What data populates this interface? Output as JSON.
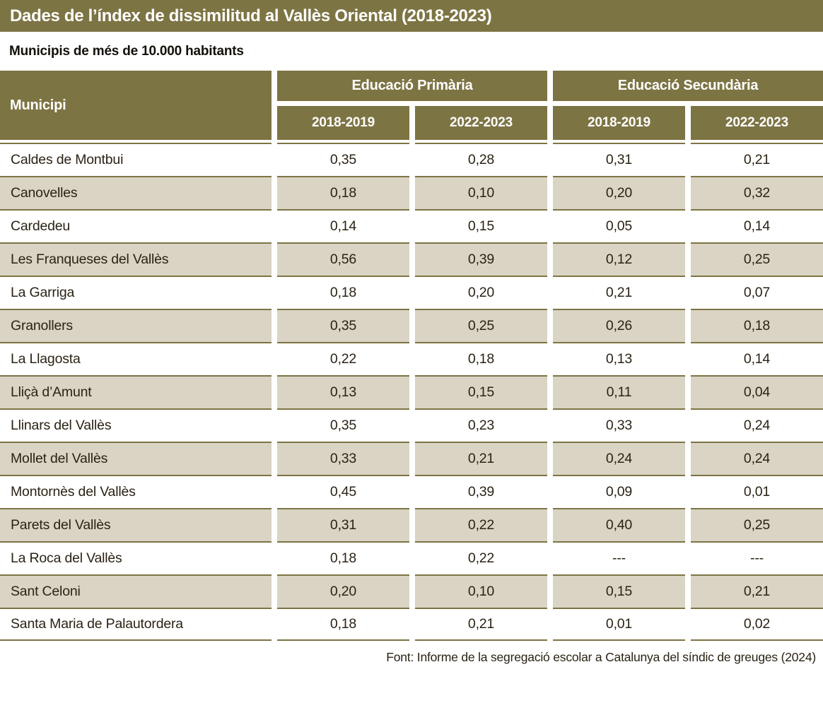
{
  "title": "Dades de l’índex de dissimilitud al Vallès Oriental (2018-2023)",
  "subtitle": "Municipis de més de 10.000 habitants",
  "table": {
    "municipality_header": "Municipi",
    "groups": [
      {
        "label": "Educació Primària",
        "columns": [
          "2018-2019",
          "2022-2023"
        ]
      },
      {
        "label": "Educació Secundària",
        "columns": [
          "2018-2019",
          "2022-2023"
        ]
      }
    ],
    "rows": [
      {
        "municipality": "Caldes de Montbui",
        "values": [
          "0,35",
          "0,28",
          "0,31",
          "0,21"
        ]
      },
      {
        "municipality": "Canovelles",
        "values": [
          "0,18",
          "0,10",
          "0,20",
          "0,32"
        ]
      },
      {
        "municipality": "Cardedeu",
        "values": [
          "0,14",
          "0,15",
          "0,05",
          "0,14"
        ]
      },
      {
        "municipality": "Les Franqueses del Vallès",
        "values": [
          "0,56",
          "0,39",
          "0,12",
          "0,25"
        ]
      },
      {
        "municipality": "La Garriga",
        "values": [
          "0,18",
          "0,20",
          "0,21",
          "0,07"
        ]
      },
      {
        "municipality": "Granollers",
        "values": [
          "0,35",
          "0,25",
          "0,26",
          "0,18"
        ]
      },
      {
        "municipality": "La Llagosta",
        "values": [
          "0,22",
          "0,18",
          "0,13",
          "0,14"
        ]
      },
      {
        "municipality": "Lliçà d’Amunt",
        "values": [
          "0,13",
          "0,15",
          "0,11",
          "0,04"
        ]
      },
      {
        "municipality": "Llinars del Vallès",
        "values": [
          "0,35",
          "0,23",
          "0,33",
          "0,24"
        ]
      },
      {
        "municipality": "Mollet del Vallès",
        "values": [
          "0,33",
          "0,21",
          "0,24",
          "0,24"
        ]
      },
      {
        "municipality": "Montornès del Vallès",
        "values": [
          "0,45",
          "0,39",
          "0,09",
          "0,01"
        ]
      },
      {
        "municipality": "Parets del Vallès",
        "values": [
          "0,31",
          "0,22",
          "0,40",
          "0,25"
        ]
      },
      {
        "municipality": "La Roca del Vallès",
        "values": [
          "0,18",
          "0,22",
          "---",
          "---"
        ]
      },
      {
        "municipality": "Sant Celoni",
        "values": [
          "0,20",
          "0,10",
          "0,15",
          "0,21"
        ]
      },
      {
        "municipality": "Santa Maria de Palautordera",
        "values": [
          "0,18",
          "0,21",
          "0,01",
          "0,02"
        ]
      }
    ]
  },
  "footer": "Font: Informe de la segregació escolar a Catalunya del síndic de greuges (2024)",
  "colors": {
    "olive": "#7d7444",
    "beige": "#d9d4c4",
    "ink": "#2b2315",
    "paper": "#ffffff"
  },
  "chart_data": {
    "type": "table",
    "title": "Dades de l’índex de dissimilitud al Vallès Oriental (2018-2023)",
    "subtitle": "Municipis de més de 10.000 habitants",
    "column_groups": [
      "Educació Primària",
      "Educació Secundària"
    ],
    "columns": [
      "Municipi",
      "Educació Primària 2018-2019",
      "Educació Primària 2022-2023",
      "Educació Secundària 2018-2019",
      "Educació Secundària 2022-2023"
    ],
    "rows": [
      [
        "Caldes de Montbui",
        0.35,
        0.28,
        0.31,
        0.21
      ],
      [
        "Canovelles",
        0.18,
        0.1,
        0.2,
        0.32
      ],
      [
        "Cardedeu",
        0.14,
        0.15,
        0.05,
        0.14
      ],
      [
        "Les Franqueses del Vallès",
        0.56,
        0.39,
        0.12,
        0.25
      ],
      [
        "La Garriga",
        0.18,
        0.2,
        0.21,
        0.07
      ],
      [
        "Granollers",
        0.35,
        0.25,
        0.26,
        0.18
      ],
      [
        "La Llagosta",
        0.22,
        0.18,
        0.13,
        0.14
      ],
      [
        "Lliçà d’Amunt",
        0.13,
        0.15,
        0.11,
        0.04
      ],
      [
        "Llinars del Vallès",
        0.35,
        0.23,
        0.33,
        0.24
      ],
      [
        "Mollet del Vallès",
        0.33,
        0.21,
        0.24,
        0.24
      ],
      [
        "Montornès del Vallès",
        0.45,
        0.39,
        0.09,
        0.01
      ],
      [
        "Parets del Vallès",
        0.31,
        0.22,
        0.4,
        0.25
      ],
      [
        "La Roca del Vallès",
        0.18,
        0.22,
        null,
        null
      ],
      [
        "Sant Celoni",
        0.2,
        0.1,
        0.15,
        0.21
      ],
      [
        "Santa Maria de Palautordera",
        0.18,
        0.21,
        0.01,
        0.02
      ]
    ],
    "missing_value_marker": "---",
    "source": "Font: Informe de la segregació escolar a Catalunya del síndic de greuges (2024)"
  }
}
